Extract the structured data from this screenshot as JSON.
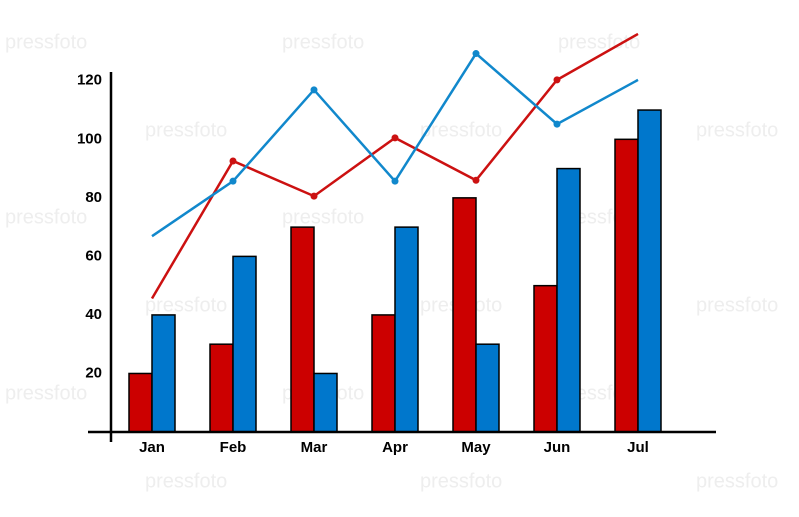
{
  "chart_data": {
    "type": "bar",
    "watermark": "pressfoto",
    "categories": [
      "Jan",
      "Feb",
      "Mar",
      "Apr",
      "May",
      "Jun",
      "Jul"
    ],
    "series": [
      {
        "type": "bar",
        "color": "#cc0000",
        "values": [
          20,
          30,
          70,
          40,
          80,
          50,
          100
        ]
      },
      {
        "type": "bar",
        "color": "#0077cc",
        "values": [
          40,
          60,
          20,
          70,
          30,
          90,
          110
        ]
      },
      {
        "type": "line",
        "color": "#cc1111",
        "values": [
          45.6,
          92.6,
          80.6,
          100.5,
          86,
          120.3,
          136
        ]
      },
      {
        "type": "line",
        "color": "#1188cc",
        "values": [
          66.9,
          85.7,
          116.9,
          85.7,
          129.3,
          105.2,
          120.3
        ]
      }
    ],
    "ylim": [
      0,
      123
    ],
    "yticks": [
      20,
      40,
      60,
      80,
      100,
      120
    ],
    "grid": false
  }
}
